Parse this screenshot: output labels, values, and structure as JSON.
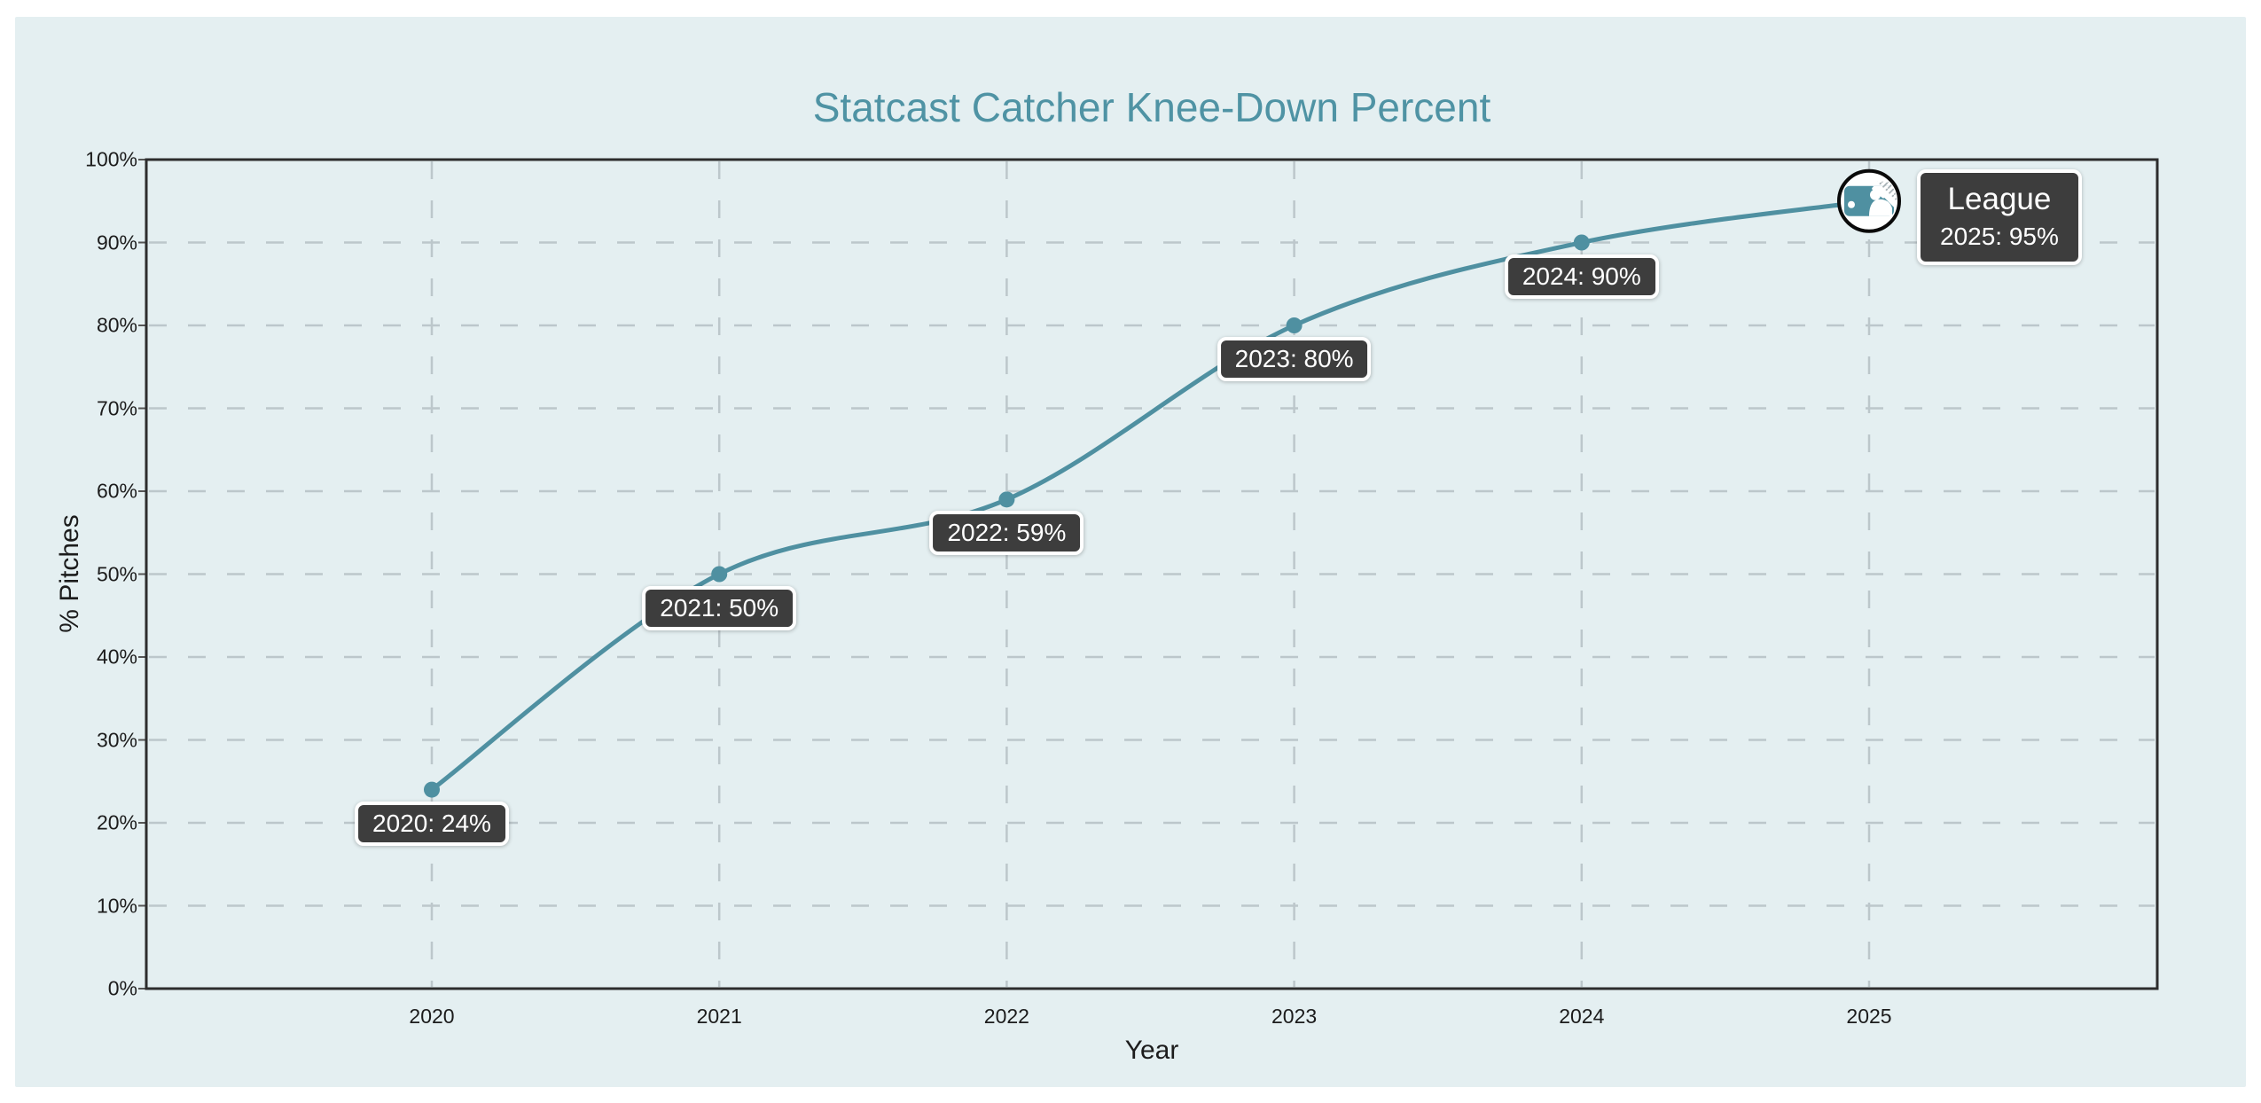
{
  "chart_data": {
    "type": "line",
    "title": "Statcast Catcher Knee-Down Percent",
    "xlabel": "Year",
    "ylabel": "% Pitches",
    "categories": [
      "2020",
      "2021",
      "2022",
      "2023",
      "2024",
      "2025"
    ],
    "series": [
      {
        "name": "League",
        "values": [
          24,
          50,
          59,
          80,
          90,
          95
        ]
      }
    ],
    "ylim": [
      0,
      100
    ],
    "y_tick_step": 10,
    "y_ticks": [
      "0%",
      "10%",
      "20%",
      "30%",
      "40%",
      "50%",
      "60%",
      "70%",
      "80%",
      "90%",
      "100%"
    ],
    "grid": "dashed",
    "legend_position": "none",
    "point_labels": [
      "2020: 24%",
      "2021: 50%",
      "2022: 59%",
      "2023: 80%",
      "2024: 90%"
    ],
    "league_label": {
      "name": "League",
      "value": "2025: 95%"
    },
    "end_marker_icon": "mlb-logo-icon"
  },
  "colors": {
    "page_background": "#ffffff",
    "card_background": "#e4eff1",
    "title": "#4f93a4",
    "line": "#4f90a1",
    "marker": "#4f90a1",
    "grid": "#bcc7cb",
    "tick": "#555555",
    "plot_border": "#2d2d2d",
    "axis_text": "#1c1c1c",
    "label_box_background": "#3d3d3d",
    "label_box_border": "#ffffff",
    "label_box_text": "#ffffff",
    "logo_ring": "#0a0a0a",
    "logo_hatch": "#a7b1b5"
  }
}
